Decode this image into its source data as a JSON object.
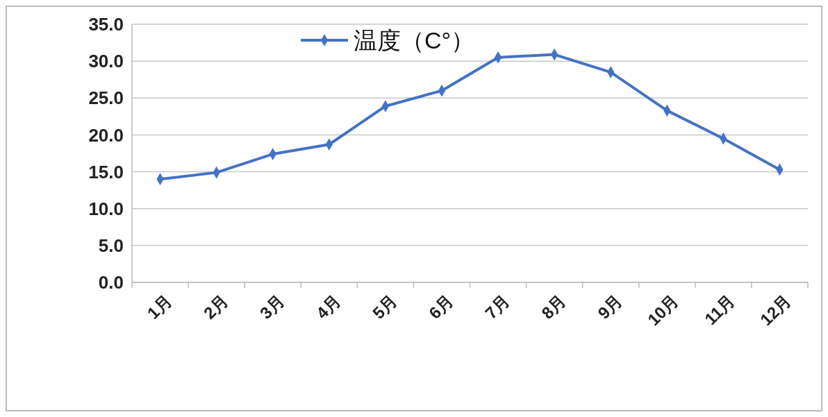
{
  "chart_data": {
    "type": "line",
    "categories": [
      "1月",
      "2月",
      "3月",
      "4月",
      "5月",
      "6月",
      "7月",
      "8月",
      "9月",
      "10月",
      "11月",
      "12月"
    ],
    "series": [
      {
        "name": "温度（C°）",
        "color": "#4472c4",
        "values": [
          14.0,
          14.9,
          17.4,
          18.7,
          23.9,
          26.0,
          30.5,
          30.9,
          28.5,
          23.3,
          19.5,
          15.3
        ]
      }
    ],
    "ylim": [
      0,
      35
    ],
    "yticks": [
      {
        "value": 0,
        "label": "0.0"
      },
      {
        "value": 5,
        "label": "5.0"
      },
      {
        "value": 10,
        "label": "10.0"
      },
      {
        "value": 15,
        "label": "15.0"
      },
      {
        "value": 20,
        "label": "20.0"
      },
      {
        "value": 25,
        "label": "25.0"
      },
      {
        "value": 30,
        "label": "30.0"
      },
      {
        "value": 35,
        "label": "35.0"
      }
    ],
    "grid": "y",
    "legend": "top",
    "marker": "diamond",
    "line_style": "solid"
  }
}
